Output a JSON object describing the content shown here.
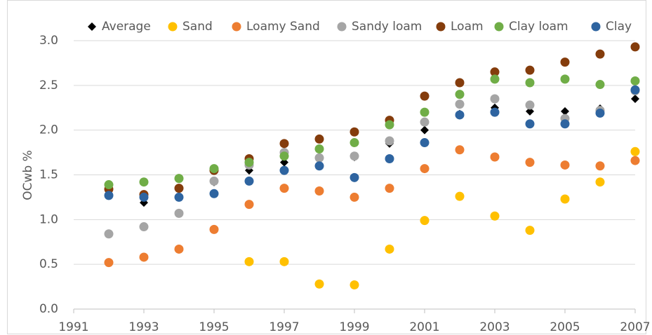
{
  "chart_data": {
    "type": "scatter",
    "ylabel": "OCwb %",
    "x": [
      1992,
      1993,
      1994,
      1995,
      1996,
      1997,
      1998,
      1999,
      2000,
      2001,
      2002,
      2003,
      2004,
      2005,
      2006,
      2007
    ],
    "series": [
      {
        "name": "Average",
        "color": "#000000",
        "marker": "diamond",
        "values": [
          1.33,
          1.19,
          1.26,
          1.42,
          1.55,
          1.64,
          1.69,
          1.7,
          1.85,
          2.0,
          2.18,
          2.25,
          2.21,
          2.21,
          2.24,
          2.35
        ]
      },
      {
        "name": "Sand",
        "color": "#ffc000",
        "marker": "circle",
        "values": [
          null,
          null,
          null,
          null,
          0.53,
          0.53,
          0.28,
          0.27,
          0.67,
          0.99,
          1.26,
          1.04,
          0.88,
          1.23,
          1.42,
          1.76
        ]
      },
      {
        "name": "Loamy Sand",
        "color": "#ed7d31",
        "marker": "circle",
        "values": [
          0.52,
          0.58,
          0.67,
          0.89,
          1.17,
          1.35,
          1.32,
          1.25,
          1.35,
          1.57,
          1.78,
          1.7,
          1.64,
          1.61,
          1.6,
          1.66
        ]
      },
      {
        "name": "Sandy loam",
        "color": "#a5a5a5",
        "marker": "circle",
        "values": [
          0.84,
          0.92,
          1.07,
          1.43,
          1.61,
          1.75,
          1.69,
          1.71,
          1.88,
          2.09,
          2.29,
          2.35,
          2.28,
          2.13,
          2.22,
          2.44
        ]
      },
      {
        "name": "Loam",
        "color": "#843c0c",
        "marker": "circle",
        "values": [
          1.34,
          1.28,
          1.35,
          1.55,
          1.68,
          1.85,
          1.9,
          1.98,
          2.11,
          2.38,
          2.53,
          2.65,
          2.67,
          2.76,
          2.85,
          2.93
        ]
      },
      {
        "name": "Clay loam",
        "color": "#70ad47",
        "marker": "circle",
        "values": [
          1.39,
          1.42,
          1.46,
          1.57,
          1.64,
          1.71,
          1.79,
          1.86,
          2.06,
          2.2,
          2.4,
          2.57,
          2.53,
          2.57,
          2.51,
          2.55
        ]
      },
      {
        "name": "Clay",
        "color": "#2e64a0",
        "marker": "circle",
        "values": [
          1.27,
          1.25,
          1.25,
          1.29,
          1.43,
          1.55,
          1.6,
          1.47,
          1.68,
          1.86,
          2.17,
          2.2,
          2.07,
          2.07,
          2.19,
          2.45
        ]
      }
    ],
    "xlim": [
      1991,
      2007
    ],
    "xticks": [
      1991,
      1993,
      1995,
      1997,
      1999,
      2001,
      2003,
      2005,
      2007
    ],
    "ylim": [
      0,
      3
    ],
    "yticks": [
      {
        "value": 0,
        "label": "0.0"
      },
      0.5,
      {
        "value": 1,
        "label": "1.0"
      },
      1.5,
      {
        "value": 2,
        "label": "2.0"
      },
      2.5,
      {
        "value": 3,
        "label": "3.0"
      }
    ],
    "grid": true,
    "legend": "top"
  }
}
